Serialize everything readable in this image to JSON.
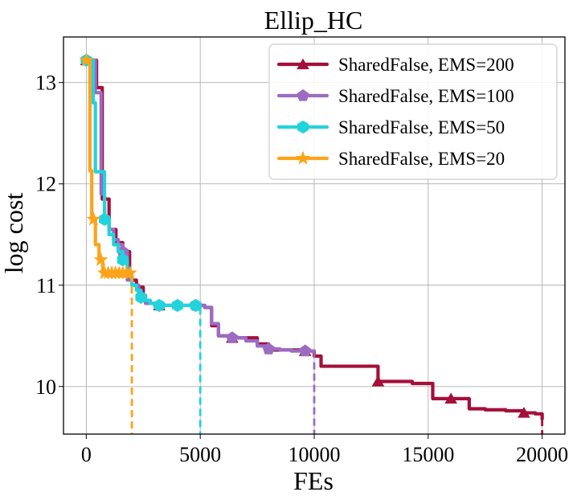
{
  "chart_data": {
    "type": "line",
    "title": "Ellip_HC",
    "xlabel": "FEs",
    "ylabel": "log cost",
    "xlim": [
      -1000,
      21000
    ],
    "ylim": [
      9.53,
      13.45
    ],
    "xticks": [
      0,
      5000,
      10000,
      15000,
      20000
    ],
    "xtick_labels": [
      "0",
      "5000",
      "10000",
      "15000",
      "20000"
    ],
    "yticks": [
      10,
      11,
      12,
      13
    ],
    "ytick_labels": [
      "10",
      "11",
      "12",
      "13"
    ],
    "grid": true,
    "legend_position": "top-right",
    "series": [
      {
        "name": "SharedFalse, EMS=200",
        "color": "#a50f3a",
        "marker": "triangle",
        "end_fe": 20000,
        "x": [
          0,
          200,
          450,
          700,
          1000,
          1300,
          1600,
          1900,
          2200,
          2500,
          2800,
          3200,
          3600,
          4000,
          4500,
          4800,
          5200,
          5500,
          5800,
          6400,
          7000,
          7500,
          8000,
          8700,
          9600,
          10000,
          10300,
          11500,
          12300,
          12800,
          13500,
          14300,
          15000,
          15200,
          16000,
          16500,
          16800,
          17500,
          18400,
          19200,
          19700,
          20000
        ],
        "y": [
          13.22,
          13.22,
          12.95,
          11.85,
          11.55,
          11.42,
          11.33,
          11.05,
          10.98,
          10.85,
          10.82,
          10.8,
          10.8,
          10.8,
          10.8,
          10.8,
          10.78,
          10.6,
          10.5,
          10.48,
          10.48,
          10.42,
          10.36,
          10.36,
          10.35,
          10.3,
          10.2,
          10.2,
          10.2,
          10.05,
          10.05,
          10.03,
          10.03,
          9.88,
          9.88,
          9.88,
          9.78,
          9.77,
          9.76,
          9.74,
          9.73,
          9.68
        ],
        "marker_x": [
          0,
          3200,
          6400,
          9600,
          12800,
          16000,
          19200
        ],
        "marker_y": [
          13.22,
          10.8,
          10.48,
          10.35,
          10.05,
          9.88,
          9.74
        ]
      },
      {
        "name": "SharedFalse, EMS=100",
        "color": "#9b6cc2",
        "marker": "pentagon",
        "end_fe": 10000,
        "x": [
          0,
          150,
          400,
          650,
          800,
          1000,
          1200,
          1400,
          1600,
          1800,
          2000,
          2300,
          2600,
          3000,
          3200,
          3600,
          4000,
          4400,
          4800,
          5200,
          5500,
          5800,
          6400,
          7000,
          7500,
          8000,
          8500,
          9000,
          9600,
          10000
        ],
        "y": [
          13.22,
          13.22,
          12.9,
          11.9,
          11.65,
          11.55,
          11.45,
          11.4,
          11.33,
          11.05,
          11.0,
          10.9,
          10.82,
          10.8,
          10.8,
          10.8,
          10.8,
          10.8,
          10.8,
          10.78,
          10.62,
          10.5,
          10.48,
          10.45,
          10.4,
          10.37,
          10.36,
          10.35,
          10.35,
          10.35
        ],
        "marker_x": [
          0,
          1600,
          3200,
          4800,
          6400,
          8000,
          9600
        ],
        "marker_y": [
          13.22,
          11.33,
          10.8,
          10.8,
          10.48,
          10.37,
          10.35
        ]
      },
      {
        "name": "SharedFalse, EMS=50",
        "color": "#22d3dc",
        "marker": "hexagon",
        "end_fe": 5000,
        "x": [
          0,
          100,
          300,
          400,
          600,
          800,
          1000,
          1200,
          1400,
          1600,
          1800,
          2000,
          2200,
          2400,
          2600,
          2800,
          3200,
          3600,
          4000,
          4400,
          4800,
          5000
        ],
        "y": [
          13.22,
          13.22,
          12.8,
          12.12,
          12.12,
          11.65,
          11.5,
          11.4,
          11.33,
          11.25,
          11.1,
          11.0,
          10.95,
          10.88,
          10.85,
          10.82,
          10.8,
          10.8,
          10.8,
          10.8,
          10.8,
          10.78
        ],
        "marker_x": [
          0,
          800,
          1600,
          2400,
          3200,
          4000,
          4800
        ],
        "marker_y": [
          13.22,
          11.65,
          11.25,
          10.88,
          10.8,
          10.8,
          10.8
        ]
      },
      {
        "name": "SharedFalse, EMS=20",
        "color": "#ffa31a",
        "marker": "star",
        "end_fe": 2000,
        "x": [
          0,
          80,
          160,
          240,
          320,
          400,
          480,
          560,
          640,
          720,
          800,
          960,
          1120,
          1280,
          1440,
          1600,
          1760,
          1920,
          2000
        ],
        "y": [
          13.22,
          13.22,
          12.13,
          11.65,
          11.65,
          11.4,
          11.4,
          11.25,
          11.25,
          11.12,
          11.12,
          11.12,
          11.12,
          11.12,
          11.12,
          11.12,
          11.12,
          11.12,
          11.1
        ],
        "marker_x": [
          0,
          320,
          640,
          800,
          960,
          1120,
          1280,
          1440,
          1600,
          1760,
          1920
        ],
        "marker_y": [
          13.22,
          11.65,
          11.25,
          11.12,
          11.12,
          11.12,
          11.12,
          11.12,
          11.12,
          11.12,
          11.12
        ]
      }
    ]
  }
}
